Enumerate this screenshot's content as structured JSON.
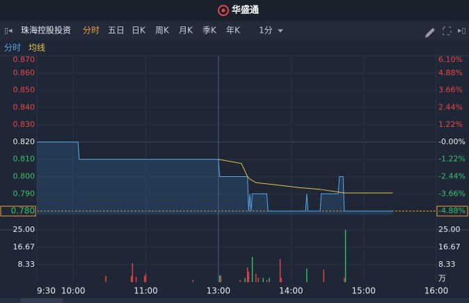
{
  "header": {
    "brand": "华盛通"
  },
  "toolbar": {
    "stock_name": "珠海控股投资",
    "tabs": [
      "分时",
      "五日",
      "日K",
      "周K",
      "月K",
      "季K",
      "年K"
    ],
    "active_tab_index": 0,
    "interval": "1分"
  },
  "chart_data": {
    "type": "line",
    "series": [
      {
        "name": "分时",
        "color": "#5aa9e6",
        "x": [
          0,
          34,
          35,
          150,
          151,
          174,
          175,
          176,
          177,
          178,
          180,
          190,
          191,
          222,
          223,
          224,
          225,
          234,
          235,
          249,
          250,
          253,
          254,
          294
        ],
        "values": [
          0.82,
          0.82,
          0.81,
          0.81,
          0.8,
          0.8,
          0.78,
          0.79,
          0.78,
          0.79,
          0.79,
          0.79,
          0.78,
          0.78,
          0.79,
          0.78,
          0.78,
          0.78,
          0.79,
          0.79,
          0.8,
          0.8,
          0.78,
          0.78
        ]
      },
      {
        "name": "均线",
        "color": "#e6c34a",
        "x": [
          150,
          169,
          174,
          176,
          181,
          200,
          217,
          234,
          254,
          294
        ],
        "values": [
          0.81,
          0.8076,
          0.8,
          0.7985,
          0.7965,
          0.795,
          0.7936,
          0.7926,
          0.7905,
          0.7905
        ]
      }
    ],
    "ylim": [
      0.778,
      0.87
    ],
    "yticks": [
      {
        "value": 0.87,
        "label": "0.870"
      },
      {
        "value": 0.86,
        "label": "0.860"
      },
      {
        "value": 0.85,
        "label": "0.850"
      },
      {
        "value": 0.84,
        "label": "0.840"
      },
      {
        "value": 0.83,
        "label": "0.830"
      },
      {
        "value": 0.82,
        "label": "0.820"
      },
      {
        "value": 0.81,
        "label": "0.810"
      },
      {
        "value": 0.8,
        "label": "0.800"
      },
      {
        "value": 0.79,
        "label": "0.790"
      },
      {
        "value": 0.78,
        "label": "0.780"
      }
    ],
    "y2lim": [
      -5.12,
      6.1
    ],
    "y2ticks": [
      {
        "value": 6.1,
        "label": "6.10%"
      },
      {
        "value": 4.88,
        "label": "4.88%"
      },
      {
        "value": 3.66,
        "label": "3.66%"
      },
      {
        "value": 2.44,
        "label": "2.44%"
      },
      {
        "value": 1.22,
        "label": "1.22%"
      },
      {
        "value": 0,
        "label": "-0.00%"
      },
      {
        "value": -1.22,
        "label": "-1.22%"
      },
      {
        "value": -2.44,
        "label": "-2.44%"
      },
      {
        "value": -3.66,
        "label": "-3.66%"
      },
      {
        "value": -4.88,
        "label": "-4.88%"
      }
    ],
    "xlim": [
      0,
      330
    ],
    "xticks": [
      {
        "value": 0,
        "label": "9:30"
      },
      {
        "value": 30,
        "label": "10:00"
      },
      {
        "value": 90,
        "label": "11:00"
      },
      {
        "value": 150,
        "label": "13:00"
      },
      {
        "value": 210,
        "label": "14:00"
      },
      {
        "value": 270,
        "label": "15:00"
      },
      {
        "value": 330,
        "label": "16:00"
      }
    ],
    "volume": {
      "unit": "万",
      "x": [
        57,
        78,
        79,
        82,
        89,
        90,
        129,
        151,
        152,
        168,
        172,
        174,
        175,
        178,
        181,
        183,
        187,
        190,
        192,
        201,
        202,
        223,
        237,
        254,
        255
      ],
      "values": [
        3,
        3,
        9,
        2.5,
        3,
        4,
        1,
        3.3,
        3,
        1,
        2,
        7,
        5,
        12,
        4,
        2,
        2,
        1,
        2,
        11,
        2,
        6.5,
        6,
        2,
        25
      ],
      "colors": [
        "#e8464a",
        "#e8464a",
        "#e8464a",
        "#e8464a",
        "#e8464a",
        "#e8464a",
        "#e8464a",
        "#3cc06a",
        "#e8464a",
        "#e8464a",
        "#3cc06a",
        "#e8464a",
        "#e8464a",
        "#3cc06a",
        "#e8464a",
        "#e8464a",
        "#3cc06a",
        "#e8464a",
        "#3cc06a",
        "#e8464a",
        "#e8464a",
        "#3cc06a",
        "#e8464a",
        "#e8464a",
        "#3cc06a"
      ],
      "ylim": [
        0,
        29
      ],
      "yticks": [
        {
          "value": 25,
          "label": "25.00"
        },
        16.67,
        8.33
      ]
    }
  }
}
